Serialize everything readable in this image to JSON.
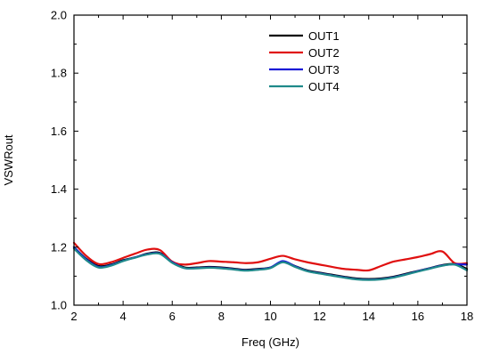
{
  "chart_data": {
    "type": "line",
    "title": "",
    "xlabel": "Freq (GHz)",
    "ylabel": "VSWRout",
    "xlim": [
      2,
      18
    ],
    "ylim": [
      1.0,
      2.0
    ],
    "xticks": [
      2,
      4,
      6,
      8,
      10,
      12,
      14,
      16,
      18
    ],
    "yticks": [
      1.0,
      1.2,
      1.4,
      1.6,
      1.8,
      2.0
    ],
    "xtick_labels": [
      "2",
      "4",
      "6",
      "8",
      "10",
      "12",
      "14",
      "16",
      "18"
    ],
    "ytick_labels": [
      "1.0",
      "1.2",
      "1.4",
      "1.6",
      "1.8",
      "2.0"
    ],
    "grid": false,
    "legend_position": "top-center",
    "series": [
      {
        "name": "OUT1",
        "color": "#000000",
        "x": [
          2,
          2.5,
          3,
          3.5,
          4,
          4.5,
          5,
          5.5,
          6,
          6.5,
          7,
          7.5,
          8,
          8.5,
          9,
          9.5,
          10,
          10.5,
          11,
          11.5,
          12,
          12.5,
          13,
          13.5,
          14,
          14.5,
          15,
          15.5,
          16,
          16.5,
          17,
          17.5,
          18
        ],
        "y": [
          1.2,
          1.16,
          1.135,
          1.14,
          1.155,
          1.165,
          1.178,
          1.18,
          1.15,
          1.13,
          1.13,
          1.132,
          1.13,
          1.126,
          1.122,
          1.125,
          1.13,
          1.15,
          1.135,
          1.12,
          1.112,
          1.105,
          1.098,
          1.092,
          1.09,
          1.092,
          1.098,
          1.108,
          1.118,
          1.128,
          1.138,
          1.142,
          1.125
        ]
      },
      {
        "name": "OUT2",
        "color": "#e01010",
        "x": [
          2,
          2.5,
          3,
          3.5,
          4,
          4.5,
          5,
          5.5,
          6,
          6.5,
          7,
          7.5,
          8,
          8.5,
          9,
          9.5,
          10,
          10.5,
          11,
          11.5,
          12,
          12.5,
          13,
          13.5,
          14,
          14.5,
          15,
          15.5,
          16,
          16.5,
          17,
          17.5,
          18
        ],
        "y": [
          1.215,
          1.17,
          1.142,
          1.148,
          1.163,
          1.178,
          1.192,
          1.19,
          1.15,
          1.14,
          1.145,
          1.152,
          1.15,
          1.148,
          1.145,
          1.148,
          1.16,
          1.17,
          1.158,
          1.148,
          1.14,
          1.132,
          1.125,
          1.122,
          1.12,
          1.135,
          1.15,
          1.158,
          1.166,
          1.176,
          1.185,
          1.145,
          1.145
        ]
      },
      {
        "name": "OUT3",
        "color": "#1a1ad6",
        "x": [
          2,
          2.5,
          3,
          3.5,
          4,
          4.5,
          5,
          5.5,
          6,
          6.5,
          7,
          7.5,
          8,
          8.5,
          9,
          9.5,
          10,
          10.5,
          11,
          11.5,
          12,
          12.5,
          13,
          13.5,
          14,
          14.5,
          15,
          15.5,
          16,
          16.5,
          17,
          17.5,
          18
        ],
        "y": [
          1.2,
          1.158,
          1.132,
          1.138,
          1.153,
          1.165,
          1.176,
          1.178,
          1.148,
          1.128,
          1.128,
          1.13,
          1.128,
          1.124,
          1.12,
          1.123,
          1.13,
          1.152,
          1.134,
          1.118,
          1.11,
          1.103,
          1.096,
          1.09,
          1.088,
          1.09,
          1.096,
          1.106,
          1.117,
          1.127,
          1.137,
          1.141,
          1.14
        ]
      },
      {
        "name": "OUT4",
        "color": "#1f8a8a",
        "x": [
          2,
          2.5,
          3,
          3.5,
          4,
          4.5,
          5,
          5.5,
          6,
          6.5,
          7,
          7.5,
          8,
          8.5,
          9,
          9.5,
          10,
          10.5,
          11,
          11.5,
          12,
          12.5,
          13,
          13.5,
          14,
          14.5,
          15,
          15.5,
          16,
          16.5,
          17,
          17.5,
          18
        ],
        "y": [
          1.195,
          1.155,
          1.13,
          1.136,
          1.152,
          1.164,
          1.175,
          1.177,
          1.146,
          1.128,
          1.127,
          1.129,
          1.127,
          1.123,
          1.119,
          1.122,
          1.128,
          1.148,
          1.132,
          1.117,
          1.109,
          1.102,
          1.095,
          1.089,
          1.087,
          1.089,
          1.095,
          1.105,
          1.116,
          1.126,
          1.136,
          1.14,
          1.12
        ]
      }
    ]
  }
}
